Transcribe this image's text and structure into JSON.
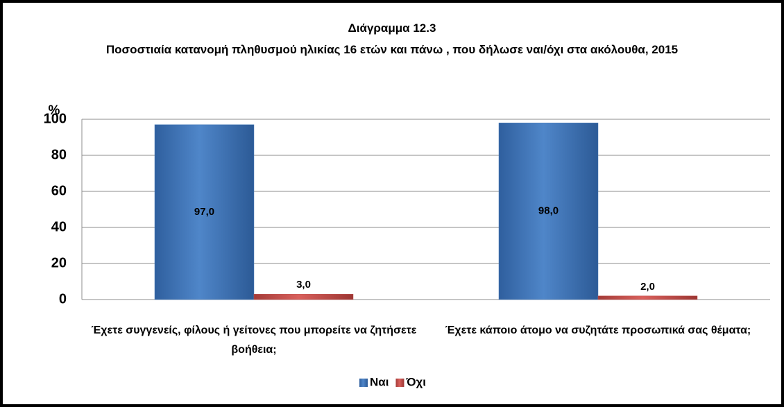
{
  "chart_data": {
    "type": "bar",
    "title": "Διάγραμμα 12.3",
    "subtitle": "Ποσοστιαία κατανομή πληθυσμού ηλικίας 16 ετών και πάνω , που δήλωσε ναι/όχι στα ακόλουθα, 2015",
    "y_label": "%",
    "categories": [
      "Έχετε συγγενείς, φίλους ή γείτονες που μπορείτε να ζητήσετε βοήθεια;",
      "Έχετε κάποιο άτομο να συζητάτε προσωπικά σας θέματα;"
    ],
    "series": [
      {
        "name": "Ναι",
        "color": "#4a7ebb",
        "values": [
          97,
          98
        ],
        "value_labels": [
          "97,0",
          "98,0"
        ]
      },
      {
        "name": "Όχι",
        "color": "#c0504d",
        "values": [
          3,
          2
        ],
        "value_labels": [
          "3,0",
          "2,0"
        ]
      }
    ],
    "ylim": [
      0,
      100
    ],
    "yticks": [
      0,
      20,
      40,
      60,
      80,
      100
    ],
    "grid": true,
    "legend": "bottom"
  }
}
